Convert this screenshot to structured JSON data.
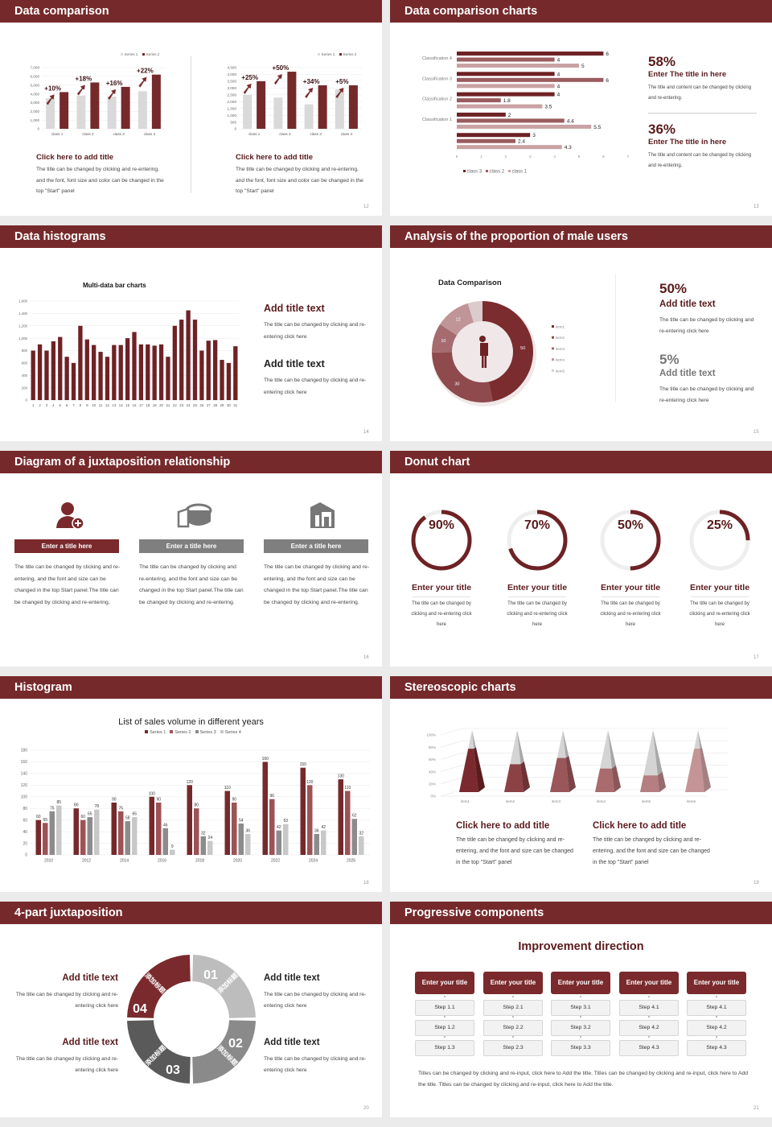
{
  "colors": {
    "accent": "#76292b",
    "dark_text": "#5a1a1c",
    "gray": "#7f7f7f",
    "light_gray": "#d9d9d9",
    "background": "#ebebeb"
  },
  "slides": {
    "s12": {
      "title": "Data comparison",
      "page": "12",
      "left": {
        "heading": "Click here to add title",
        "body": "The title can be changed by clicking and re-entering, and the font, font size and color can be changed in the top \"Start\" panel"
      },
      "right": {
        "heading": "Click here to add title",
        "body": "The title can be changed by clicking and re-entering, and the font, font size and color can be changed in the top \"Start\" panel"
      }
    },
    "s13": {
      "title": "Data comparison charts",
      "page": "13",
      "stats": [
        {
          "value": "58%",
          "heading": "Enter The title in here",
          "body": "The title and content can be changed by clicking and re-entering."
        },
        {
          "value": "36%",
          "heading": "Enter The title in here",
          "body": "The title and content can be changed by clicking and re-entering."
        }
      ]
    },
    "s14": {
      "title": "Data histograms",
      "page": "14",
      "chart_title": "Multi-data bar charts",
      "items": [
        {
          "heading": "Add title text",
          "body": "The title can be changed by clicking and re-entering click here"
        },
        {
          "heading": "Add title text",
          "body": "The title can be changed by clicking and re-entering click here"
        }
      ]
    },
    "s15": {
      "title": "Analysis of the proportion of male users",
      "page": "15",
      "chart_title": "Data Comparison",
      "stats": [
        {
          "value": "50%",
          "heading": "Add title text",
          "body": "The title can be changed by clicking and re-entering click here"
        },
        {
          "value": "5%",
          "heading": "Add title text",
          "body": "The title can be changed by clicking and re-entering click here"
        }
      ]
    },
    "s16": {
      "title": "Diagram of a juxtaposition relationship",
      "page": "16",
      "columns": [
        {
          "icon": "user-add-icon",
          "label": "Enter a title here",
          "body": "The title can be changed by clicking and re-entering, and the font and size can be changed in the top Start panel.The title can be changed by clicking and re-entering."
        },
        {
          "icon": "pie-chart-3d-icon",
          "label": "Enter a title here",
          "body": "The title can be changed by clicking and re-entering, and the font and size can be changed in the top Start panel.The title can be changed by clicking and re-entering."
        },
        {
          "icon": "building-chart-icon",
          "label": "Enter a title here",
          "body": "The title can be changed by clicking and re-entering, and the font and size can be changed in the top Start panel.The title can be changed by clicking and re-entering."
        }
      ]
    },
    "s17": {
      "title": "Donut chart",
      "page": "17",
      "rings": [
        {
          "label": "90%",
          "value": 90,
          "heading": "Enter your title",
          "body": "The title can be changed by clicking and re-entering click here"
        },
        {
          "label": "70%",
          "value": 70,
          "heading": "Enter your title",
          "body": "The title can be changed by clicking and re-entering click here"
        },
        {
          "label": "50%",
          "value": 50,
          "heading": "Enter your title",
          "body": "The title can be changed by clicking and re-entering click here"
        },
        {
          "label": "25%",
          "value": 25,
          "heading": "Enter your title",
          "body": "The title can be changed by clicking and re-entering click here"
        }
      ]
    },
    "s18": {
      "title": "Histogram",
      "page": "18"
    },
    "s19": {
      "title": "Stereoscopic charts",
      "page": "19",
      "items": [
        {
          "heading": "Click here to add title",
          "body": "The title can be changed by clicking and re-entering, and the font and size can be changed in the top \"Start\" panel"
        },
        {
          "heading": "Click here to add title",
          "body": "The title can be changed by clicking and re-entering, and the font and size can be changed in the top \"Start\" panel"
        }
      ]
    },
    "s20": {
      "title": "4-part juxtaposition",
      "page": "20",
      "segments": [
        {
          "number": "01",
          "label": "添加标题"
        },
        {
          "number": "02",
          "label": "添加标题"
        },
        {
          "number": "03",
          "label": "添加标题"
        },
        {
          "number": "04",
          "label": "添加标题"
        }
      ],
      "items": [
        {
          "heading": "Add title text",
          "body": "The title can be changed by clicking and re-entering click here"
        },
        {
          "heading": "Add title text",
          "body": "The title can be changed by clicking and re-entering click here"
        },
        {
          "heading": "Add title text",
          "body": "The title can be changed by clicking and re-entering click here"
        },
        {
          "heading": "Add title text",
          "body": "The title can be changed by clicking and re-entering click here"
        }
      ]
    },
    "s21": {
      "title": "Progressive components",
      "page": "21",
      "heading": "Improvement direction",
      "columns": [
        {
          "title": "Enter your title",
          "steps": [
            "Step 1.1",
            "Step 1.2",
            "Step 1.3"
          ]
        },
        {
          "title": "Enter your title",
          "steps": [
            "Step 2.1",
            "Step 2.2",
            "Step 2.3"
          ]
        },
        {
          "title": "Enter your title",
          "steps": [
            "Step 3.1",
            "Step 3.2",
            "Step 3.3"
          ]
        },
        {
          "title": "Enter your title",
          "steps": [
            "Step 4.1",
            "Step 4.2",
            "Step 4.3"
          ]
        },
        {
          "title": "Enter your title",
          "steps": [
            "Step 4.1",
            "Step 4.2",
            "Step 4.3"
          ]
        }
      ],
      "footer": "Titles can be changed by clicking and re-input, click here to Add the title. Titles can be changed by clicking and re-input, click here to Add the title. Titles can be changed by clicking and re-input, click here to Add the title."
    }
  },
  "chart_data": [
    {
      "id": "s12-left",
      "type": "bar",
      "categories": [
        "class 1",
        "class 2",
        "class 3",
        "class 4"
      ],
      "series": [
        {
          "name": "Series 1",
          "values": [
            3500,
            3800,
            3700,
            4300
          ]
        },
        {
          "name": "Series 2",
          "values": [
            4200,
            5300,
            4800,
            6200
          ]
        }
      ],
      "annotations": [
        "+10%",
        "+18%",
        "+16%",
        "+22%"
      ],
      "ylim": [
        0,
        7000
      ],
      "ytick_step": 1000,
      "legend": "top-right",
      "grid": true
    },
    {
      "id": "s12-right",
      "type": "bar",
      "categories": [
        "class 1",
        "class 2",
        "class 3",
        "class 4"
      ],
      "series": [
        {
          "name": "Series 1",
          "values": [
            2500,
            2300,
            1800,
            2900
          ]
        },
        {
          "name": "Series 2",
          "values": [
            3500,
            4200,
            3200,
            3200
          ]
        }
      ],
      "annotations": [
        "+25%",
        "+50%",
        "+34%",
        "+5%"
      ],
      "ylim": [
        0,
        4500
      ],
      "ytick_step": 500,
      "legend": "top-right",
      "grid": true
    },
    {
      "id": "s13",
      "type": "bar",
      "orientation": "horizontal",
      "categories": [
        "Classification 4",
        "Classification 3",
        "Classification 2",
        "Classification 1",
        ""
      ],
      "series": [
        {
          "name": "class 3",
          "values": [
            6,
            4,
            4,
            2,
            3
          ]
        },
        {
          "name": "class 2",
          "values": [
            4,
            6,
            1.8,
            4.4,
            2.4
          ]
        },
        {
          "name": "class 1",
          "values": [
            5,
            4,
            3.5,
            5.5,
            4.3
          ]
        }
      ],
      "xlim": [
        0,
        7
      ],
      "xticks": [
        0,
        1,
        2,
        3,
        4,
        5,
        6,
        7
      ],
      "legend": "bottom"
    },
    {
      "id": "s14",
      "type": "bar",
      "title": "Multi-data bar charts",
      "categories": [
        "1",
        "2",
        "3",
        "4",
        "5",
        "6",
        "7",
        "8",
        "9",
        "10",
        "11",
        "12",
        "13",
        "14",
        "15",
        "16",
        "17",
        "18",
        "19",
        "20",
        "21",
        "22",
        "23",
        "24",
        "25",
        "26",
        "27",
        "28",
        "29",
        "30",
        "31"
      ],
      "series": [
        {
          "values": [
            800,
            900,
            800,
            950,
            1020,
            700,
            600,
            1200,
            980,
            890,
            780,
            700,
            890,
            890,
            1000,
            1100,
            900,
            900,
            880,
            900,
            700,
            1200,
            1300,
            1450,
            1300,
            800,
            960,
            970,
            650,
            600,
            870
          ]
        }
      ],
      "ylim": [
        0,
        1600
      ],
      "ytick_step": 200,
      "grid": true
    },
    {
      "id": "s15",
      "type": "pie",
      "variant": "donut",
      "title": "Data Comparison",
      "labels": [
        "item1",
        "item2",
        "item3",
        "item4",
        "item5"
      ],
      "values": [
        50,
        30,
        10,
        12,
        5
      ],
      "shown_value_labels": [
        "50",
        "30",
        "10",
        "12",
        ""
      ],
      "legend": "right",
      "colors": [
        "#7b2c2f",
        "#8e4a4d",
        "#a56b6e",
        "#c09597",
        "#dccbcc"
      ]
    },
    {
      "id": "s18",
      "type": "bar",
      "title": "List of sales volume in different years",
      "categories": [
        "2010",
        "2012",
        "2014",
        "2016",
        "2018",
        "2020",
        "2022",
        "2024",
        "2026"
      ],
      "series": [
        {
          "name": "Series 1",
          "values": [
            60,
            80,
            90,
            100,
            120,
            110,
            160,
            150,
            130
          ]
        },
        {
          "name": "Series 2",
          "values": [
            55,
            60,
            75,
            90,
            80,
            90,
            96,
            120,
            110
          ]
        },
        {
          "name": "Series 3",
          "values": [
            75,
            65,
            58,
            46,
            32,
            54,
            42,
            36,
            62
          ]
        },
        {
          "name": "Series 4",
          "values": [
            85,
            78,
            65,
            9,
            24,
            36,
            53,
            42,
            32
          ]
        }
      ],
      "ylim": [
        0,
        180
      ],
      "ytick_step": 20,
      "legend": "top",
      "grid": true,
      "show_values": true
    },
    {
      "id": "s19",
      "type": "bar",
      "variant": "3d-pyramid",
      "categories": [
        "item1",
        "item2",
        "item3",
        "item4",
        "item5",
        "item6"
      ],
      "values": [
        70,
        45,
        55,
        38,
        27,
        70
      ],
      "ylim": [
        0,
        100
      ],
      "ytick_step": 20,
      "ytick_format": "percent",
      "grid": true
    }
  ]
}
